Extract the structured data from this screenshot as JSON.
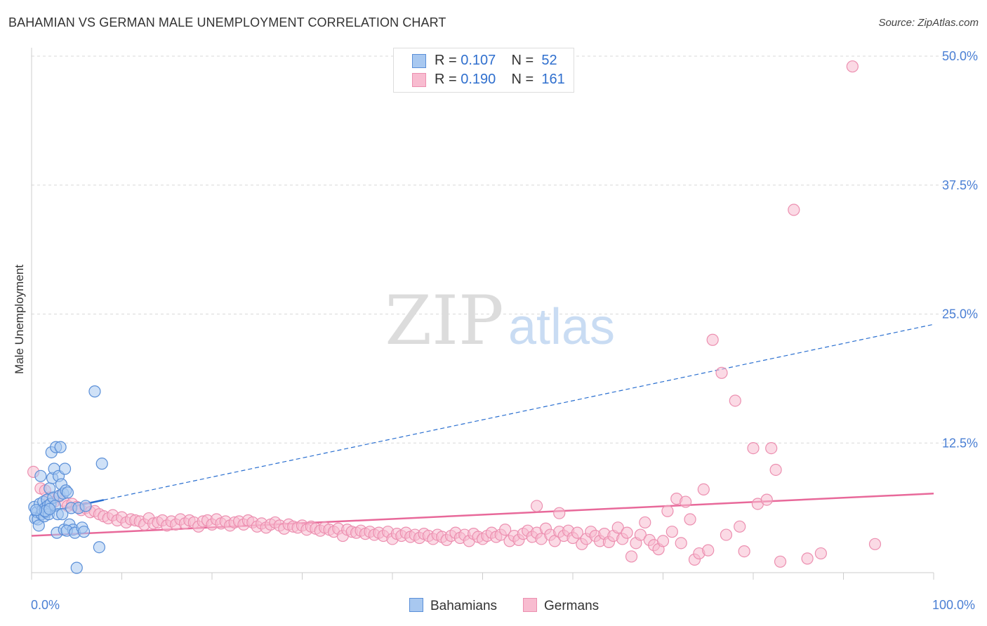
{
  "title": "BAHAMIAN VS GERMAN MALE UNEMPLOYMENT CORRELATION CHART",
  "source": "Source: ZipAtlas.com",
  "watermark": {
    "zip": "ZIP",
    "atlas": "atlas"
  },
  "legend_top": [
    {
      "r_label": "R =",
      "r_value": "0.107",
      "n_label": "N =",
      "n_value": "52"
    },
    {
      "r_label": "R =",
      "r_value": "0.190",
      "n_label": "N =",
      "n_value": "161"
    }
  ],
  "legend_bottom": [
    "Bahamians",
    "Germans"
  ],
  "colors": {
    "bahamians_fill": "#a8c8f0",
    "bahamians_stroke": "#5a8fd8",
    "bahamians_line": "#2a6fd0",
    "germans_fill": "#f8bcd0",
    "germans_stroke": "#ec8fb0",
    "germans_line": "#e8699a",
    "tick_text": "#4a7fd4",
    "grid": "#d8d8d8"
  },
  "chart_data": {
    "type": "scatter",
    "title": "BAHAMIAN VS GERMAN MALE UNEMPLOYMENT CORRELATION CHART",
    "xlabel": "",
    "ylabel": "Male Unemployment",
    "xlim": [
      0,
      100
    ],
    "ylim": [
      0,
      50
    ],
    "x_tick_labels": [
      "0.0%",
      "100.0%"
    ],
    "y_ticks": [
      {
        "value": 12.5,
        "label": "12.5%"
      },
      {
        "value": 25.0,
        "label": "25.0%"
      },
      {
        "value": 37.5,
        "label": "37.5%"
      },
      {
        "value": 50.0,
        "label": "50.0%"
      }
    ],
    "series": [
      {
        "name": "Bahamians",
        "r": 0.107,
        "n": 52,
        "trend": {
          "x_start": 0,
          "x_end": 100,
          "y_start": 5.5,
          "y_end": 24.0,
          "solid_until_x": 8
        },
        "points": [
          [
            0.3,
            6.3
          ],
          [
            0.4,
            5.2
          ],
          [
            0.6,
            5.8
          ],
          [
            0.7,
            5.1
          ],
          [
            0.8,
            4.5
          ],
          [
            0.9,
            6.6
          ],
          [
            1.0,
            9.3
          ],
          [
            1.1,
            5.6
          ],
          [
            1.2,
            6.0
          ],
          [
            1.3,
            6.8
          ],
          [
            1.4,
            5.4
          ],
          [
            1.5,
            6.2
          ],
          [
            1.6,
            5.8
          ],
          [
            1.7,
            7.0
          ],
          [
            1.8,
            6.4
          ],
          [
            1.9,
            5.6
          ],
          [
            2.0,
            8.1
          ],
          [
            2.1,
            6.6
          ],
          [
            2.2,
            11.6
          ],
          [
            2.3,
            9.1
          ],
          [
            2.4,
            7.2
          ],
          [
            2.5,
            10.0
          ],
          [
            2.6,
            6.4
          ],
          [
            2.7,
            12.1
          ],
          [
            2.8,
            3.8
          ],
          [
            2.9,
            5.6
          ],
          [
            3.0,
            9.3
          ],
          [
            3.1,
            7.4
          ],
          [
            3.2,
            12.1
          ],
          [
            3.3,
            8.5
          ],
          [
            3.4,
            5.6
          ],
          [
            3.5,
            7.6
          ],
          [
            3.6,
            4.1
          ],
          [
            3.7,
            10.0
          ],
          [
            3.8,
            7.9
          ],
          [
            4.0,
            7.7
          ],
          [
            4.2,
            4.6
          ],
          [
            4.4,
            6.2
          ],
          [
            4.6,
            4.1
          ],
          [
            3.9,
            4.0
          ],
          [
            4.8,
            3.8
          ],
          [
            5.0,
            0.4
          ],
          [
            5.2,
            6.2
          ],
          [
            5.6,
            4.3
          ],
          [
            5.8,
            3.9
          ],
          [
            6.0,
            6.4
          ],
          [
            7.0,
            17.5
          ],
          [
            7.5,
            2.4
          ],
          [
            7.8,
            10.5
          ],
          [
            1.5,
            5.9
          ],
          [
            0.5,
            6.0
          ],
          [
            2.0,
            6.1
          ]
        ]
      },
      {
        "name": "Germans",
        "r": 0.19,
        "n": 161,
        "trend": {
          "x_start": 0,
          "x_end": 100,
          "y_start": 3.5,
          "y_end": 7.6
        },
        "points": [
          [
            0.2,
            9.7
          ],
          [
            1.0,
            8.1
          ],
          [
            1.5,
            7.9
          ],
          [
            2.0,
            7.2
          ],
          [
            2.5,
            6.8
          ],
          [
            3.0,
            7.3
          ],
          [
            3.5,
            6.9
          ],
          [
            4.0,
            6.4
          ],
          [
            4.5,
            6.6
          ],
          [
            5.0,
            6.3
          ],
          [
            5.5,
            6.0
          ],
          [
            6.0,
            6.2
          ],
          [
            6.5,
            5.8
          ],
          [
            7.0,
            5.9
          ],
          [
            7.5,
            5.6
          ],
          [
            8.0,
            5.4
          ],
          [
            8.5,
            5.2
          ],
          [
            9.0,
            5.5
          ],
          [
            9.5,
            5.0
          ],
          [
            10.0,
            5.3
          ],
          [
            10.5,
            4.8
          ],
          [
            11.0,
            5.1
          ],
          [
            11.5,
            5.0
          ],
          [
            12.0,
            4.9
          ],
          [
            12.5,
            4.6
          ],
          [
            13.0,
            5.2
          ],
          [
            13.5,
            4.7
          ],
          [
            14.0,
            4.8
          ],
          [
            14.5,
            5.0
          ],
          [
            15.0,
            4.5
          ],
          [
            15.5,
            4.9
          ],
          [
            16.0,
            4.6
          ],
          [
            16.5,
            5.1
          ],
          [
            17.0,
            4.7
          ],
          [
            17.5,
            5.0
          ],
          [
            18.0,
            4.8
          ],
          [
            18.5,
            4.4
          ],
          [
            19.0,
            4.9
          ],
          [
            19.5,
            5.0
          ],
          [
            20.0,
            4.6
          ],
          [
            20.5,
            5.1
          ],
          [
            21.0,
            4.7
          ],
          [
            21.5,
            4.9
          ],
          [
            22.0,
            4.5
          ],
          [
            22.5,
            4.8
          ],
          [
            23.0,
            4.9
          ],
          [
            23.5,
            4.6
          ],
          [
            24.0,
            5.0
          ],
          [
            24.5,
            4.8
          ],
          [
            25.0,
            4.4
          ],
          [
            25.5,
            4.7
          ],
          [
            26.0,
            4.3
          ],
          [
            26.5,
            4.6
          ],
          [
            27.0,
            4.8
          ],
          [
            27.5,
            4.5
          ],
          [
            28.0,
            4.2
          ],
          [
            28.5,
            4.6
          ],
          [
            29.0,
            4.4
          ],
          [
            29.5,
            4.3
          ],
          [
            30.0,
            4.5
          ],
          [
            30.5,
            4.1
          ],
          [
            31.0,
            4.4
          ],
          [
            31.5,
            4.2
          ],
          [
            32.0,
            4.0
          ],
          [
            32.5,
            4.3
          ],
          [
            33.0,
            4.1
          ],
          [
            33.5,
            3.9
          ],
          [
            34.0,
            4.2
          ],
          [
            34.5,
            3.5
          ],
          [
            35.0,
            4.1
          ],
          [
            35.5,
            3.9
          ],
          [
            36.0,
            3.8
          ],
          [
            36.5,
            4.0
          ],
          [
            37.0,
            3.7
          ],
          [
            37.5,
            3.9
          ],
          [
            38.0,
            3.6
          ],
          [
            38.5,
            3.8
          ],
          [
            39.0,
            3.5
          ],
          [
            39.5,
            3.9
          ],
          [
            40.0,
            3.2
          ],
          [
            40.5,
            3.7
          ],
          [
            41.0,
            3.5
          ],
          [
            41.5,
            3.8
          ],
          [
            42.0,
            3.4
          ],
          [
            42.5,
            3.6
          ],
          [
            43.0,
            3.3
          ],
          [
            43.5,
            3.7
          ],
          [
            44.0,
            3.5
          ],
          [
            44.5,
            3.2
          ],
          [
            45.0,
            3.6
          ],
          [
            45.5,
            3.4
          ],
          [
            46.0,
            3.1
          ],
          [
            46.5,
            3.5
          ],
          [
            47.0,
            3.8
          ],
          [
            47.5,
            3.3
          ],
          [
            48.0,
            3.6
          ],
          [
            48.5,
            3.0
          ],
          [
            49.0,
            3.7
          ],
          [
            49.5,
            3.4
          ],
          [
            50.0,
            3.2
          ],
          [
            50.5,
            3.5
          ],
          [
            51.0,
            3.8
          ],
          [
            51.5,
            3.4
          ],
          [
            52.0,
            3.6
          ],
          [
            52.5,
            4.1
          ],
          [
            53.0,
            3.0
          ],
          [
            53.5,
            3.5
          ],
          [
            54.0,
            3.1
          ],
          [
            54.5,
            3.7
          ],
          [
            55.0,
            4.0
          ],
          [
            55.5,
            3.4
          ],
          [
            56.0,
            3.8
          ],
          [
            56.5,
            3.2
          ],
          [
            57.0,
            4.2
          ],
          [
            57.5,
            3.6
          ],
          [
            58.0,
            3.0
          ],
          [
            58.5,
            3.9
          ],
          [
            59.0,
            3.5
          ],
          [
            59.5,
            4.0
          ],
          [
            60.0,
            3.3
          ],
          [
            60.5,
            3.8
          ],
          [
            61.0,
            2.7
          ],
          [
            61.5,
            3.2
          ],
          [
            62.0,
            3.9
          ],
          [
            62.5,
            3.5
          ],
          [
            63.0,
            3.0
          ],
          [
            63.5,
            3.7
          ],
          [
            64.0,
            2.9
          ],
          [
            64.5,
            3.5
          ],
          [
            65.0,
            4.3
          ],
          [
            65.5,
            3.2
          ],
          [
            66.0,
            3.8
          ],
          [
            66.5,
            1.5
          ],
          [
            67.0,
            2.8
          ],
          [
            67.5,
            3.6
          ],
          [
            68.0,
            4.8
          ],
          [
            68.5,
            3.1
          ],
          [
            69.0,
            2.6
          ],
          [
            69.5,
            2.2
          ],
          [
            70.0,
            3.0
          ],
          [
            70.5,
            5.9
          ],
          [
            71.0,
            3.9
          ],
          [
            71.5,
            7.1
          ],
          [
            72.0,
            2.8
          ],
          [
            72.5,
            6.8
          ],
          [
            73.0,
            5.1
          ],
          [
            73.5,
            1.2
          ],
          [
            74.0,
            1.8
          ],
          [
            74.5,
            8.0
          ],
          [
            75.0,
            2.1
          ],
          [
            56.0,
            6.4
          ],
          [
            58.5,
            5.7
          ],
          [
            75.5,
            22.5
          ],
          [
            76.5,
            19.3
          ],
          [
            77.0,
            3.6
          ],
          [
            78.0,
            16.6
          ],
          [
            78.5,
            4.4
          ],
          [
            79.0,
            2.0
          ],
          [
            80.0,
            12.0
          ],
          [
            80.5,
            6.6
          ],
          [
            81.5,
            7.0
          ],
          [
            82.0,
            12.0
          ],
          [
            82.5,
            9.9
          ],
          [
            83.0,
            1.0
          ],
          [
            84.5,
            35.1
          ],
          [
            86.0,
            1.3
          ],
          [
            87.5,
            1.8
          ],
          [
            91.0,
            49.0
          ],
          [
            93.5,
            2.7
          ]
        ]
      }
    ]
  }
}
